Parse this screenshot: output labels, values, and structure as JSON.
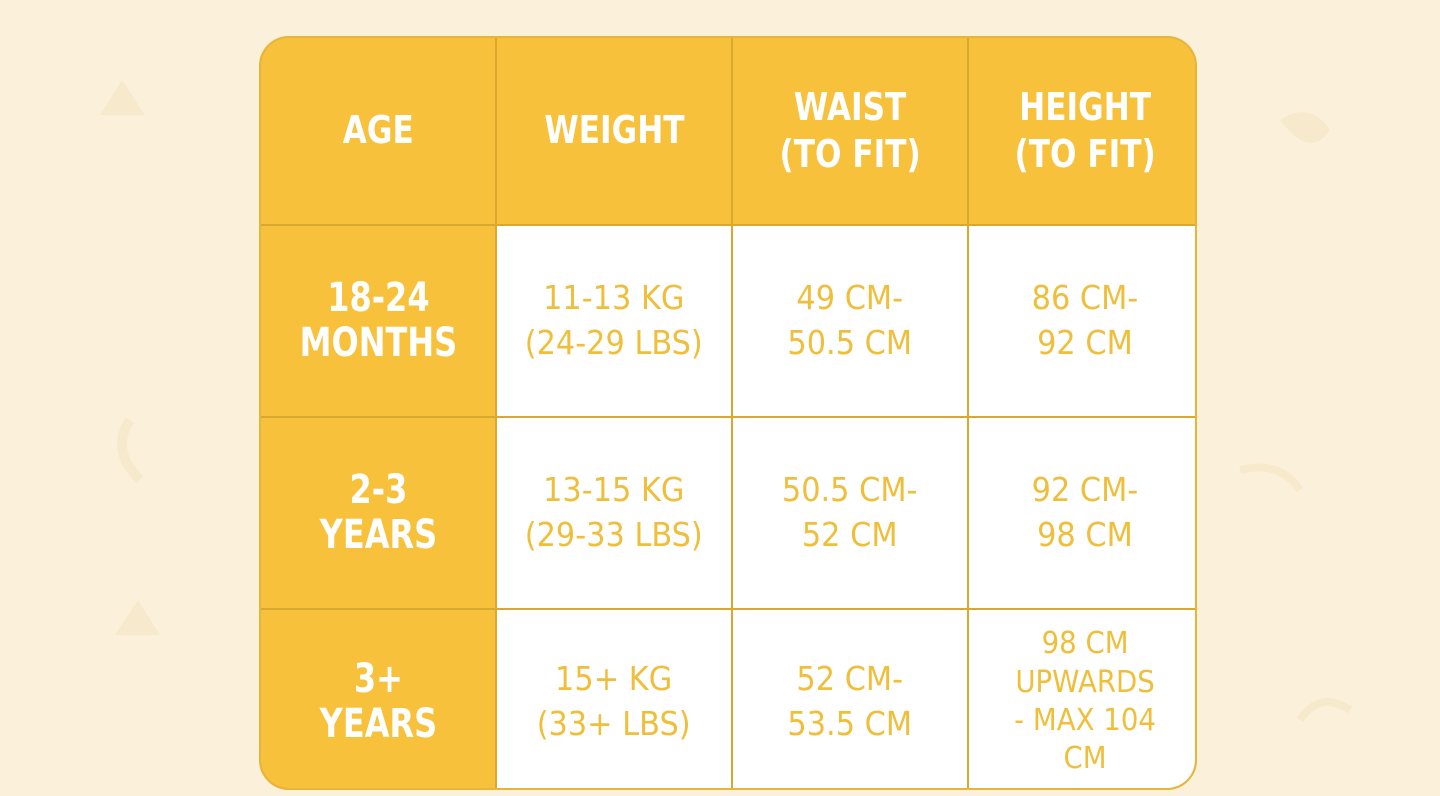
{
  "table": {
    "headers": [
      "AGE",
      "WEIGHT",
      "WAIST\n(TO FIT)",
      "HEIGHT\n(TO FIT)"
    ],
    "rows": [
      {
        "age": "18-24\nMONTHS",
        "weight": "11-13 KG\n(24-29 LBS)",
        "waist": "49 CM-\n50.5 CM",
        "height": "86 CM-\n92 CM"
      },
      {
        "age": "2-3\nYEARS",
        "weight": "13-15 KG\n(29-33 LBS)",
        "waist": "50.5 CM-\n52 CM",
        "height": "92 CM-\n98 CM"
      },
      {
        "age": "3+\nYEARS",
        "weight": "15+ KG\n(33+ LBS)",
        "waist": "52 CM-\n53.5 CM",
        "height": "98 CM\nUPWARDS\n- MAX 104\nCM"
      }
    ]
  },
  "colors": {
    "background": "#fbf1db",
    "header_fill": "#f7c13c",
    "value_text": "#efbe3a",
    "border": "#d9a82e"
  }
}
